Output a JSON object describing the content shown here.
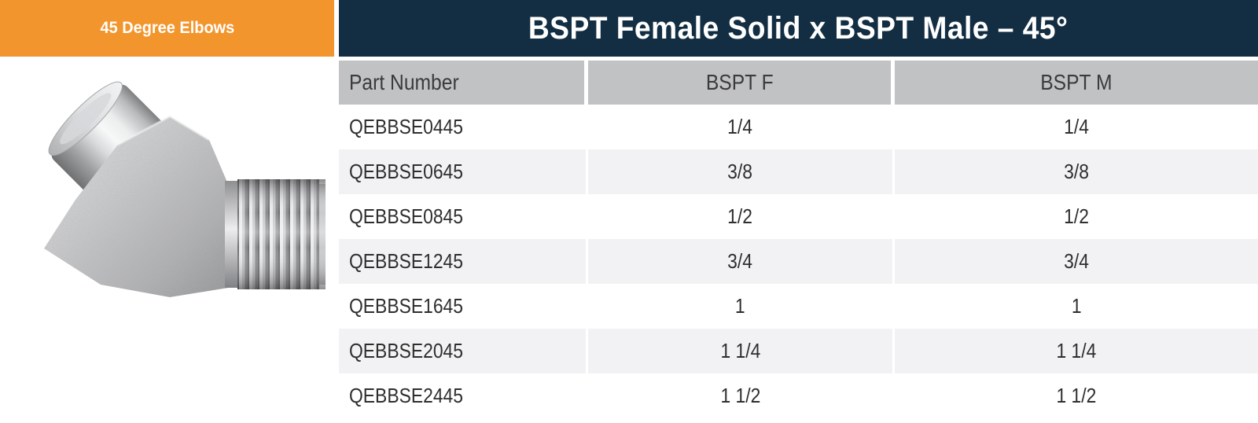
{
  "banner": {
    "category_label": "45 Degree Elbows",
    "product_title": "BSPT Female Solid x BSPT Male – 45°"
  },
  "product_image": {
    "name": "45-degree-elbow-fitting-photo",
    "description": "Steel 45 degree elbow fitting, BSPT female solid socket end and BSPT male tapered threaded end"
  },
  "table": {
    "columns": [
      {
        "key": "part_number",
        "label": "Part Number"
      },
      {
        "key": "bspt_f",
        "label": "BSPT F"
      },
      {
        "key": "bspt_m",
        "label": "BSPT M"
      }
    ],
    "rows": [
      {
        "part_number": "QEBBSE0445",
        "bspt_f": "1/4",
        "bspt_m": "1/4"
      },
      {
        "part_number": "QEBBSE0645",
        "bspt_f": "3/8",
        "bspt_m": "3/8"
      },
      {
        "part_number": "QEBBSE0845",
        "bspt_f": "1/2",
        "bspt_m": "1/2"
      },
      {
        "part_number": "QEBBSE1245",
        "bspt_f": "3/4",
        "bspt_m": "3/4"
      },
      {
        "part_number": "QEBBSE1645",
        "bspt_f": "1",
        "bspt_m": "1"
      },
      {
        "part_number": "QEBBSE2045",
        "bspt_f": "1 1/4",
        "bspt_m": "1 1/4"
      },
      {
        "part_number": "QEBBSE2445",
        "bspt_f": "1 1/2",
        "bspt_m": "1 1/2"
      }
    ]
  },
  "colors": {
    "orange": "#F2952C",
    "navy": "#132E43",
    "header_bg": "#C1C2C4",
    "alt_row_bg": "#F2F2F4",
    "header_text": "#3B3B3B",
    "cell_text": "#2E2E2E",
    "banner_text": "#FFFFFF"
  }
}
